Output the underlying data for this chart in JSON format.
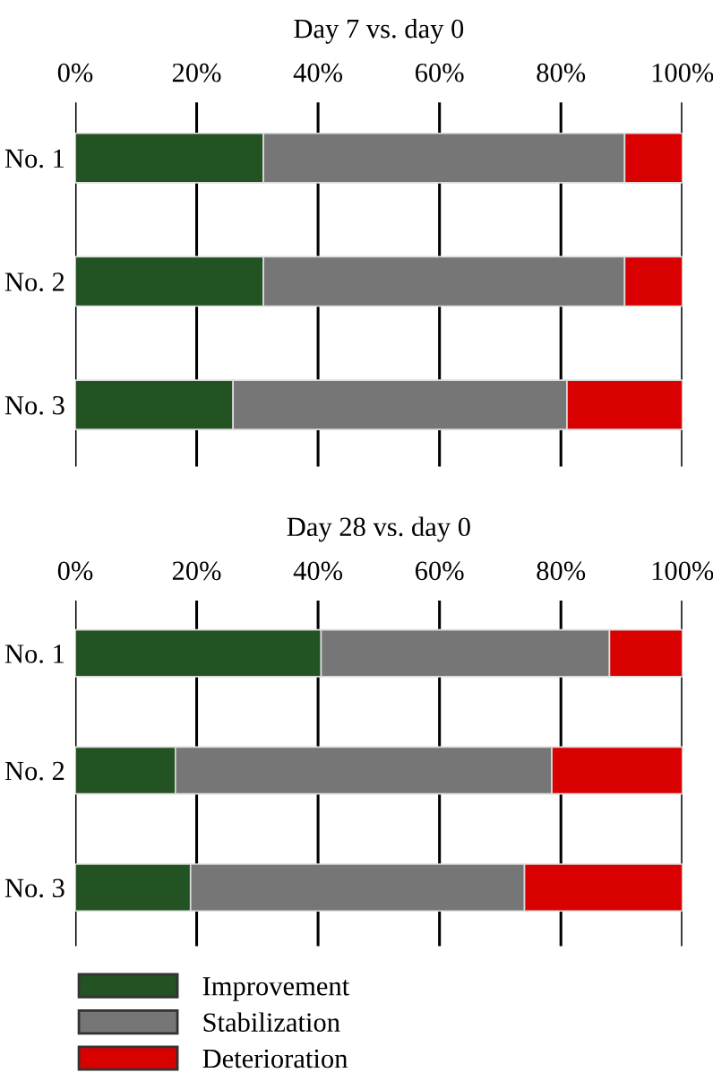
{
  "chart_data": [
    {
      "type": "bar",
      "title": "Day 7 vs. day 0",
      "orientation": "horizontal",
      "stacked": true,
      "categories": [
        "No. 1",
        "No. 2",
        "No. 3"
      ],
      "series": [
        {
          "color": "#235223",
          "values": [
            31,
            31,
            26
          ]
        },
        {
          "color": "#767676",
          "values": [
            59.5,
            59.5,
            55
          ]
        },
        {
          "color": "#d90000",
          "values": [
            9.5,
            9.5,
            19
          ]
        }
      ],
      "xlim": [
        0,
        100
      ],
      "xticks": [
        {
          "value": 0,
          "label": "0%"
        },
        {
          "value": 20,
          "label": "20%"
        },
        {
          "value": 40,
          "label": "40%"
        },
        {
          "value": 60,
          "label": "60%"
        },
        {
          "value": 80,
          "label": "80%"
        },
        {
          "value": 100,
          "label": "100%"
        }
      ],
      "grid": "x"
    },
    {
      "type": "bar",
      "title": "Day 28 vs. day 0",
      "orientation": "horizontal",
      "stacked": true,
      "categories": [
        "No. 1",
        "No. 2",
        "No. 3"
      ],
      "series": [
        {
          "name": "Improvement",
          "color": "#235223",
          "values": [
            40.5,
            16.5,
            19
          ]
        },
        {
          "name": "Stabilization",
          "color": "#767676",
          "values": [
            47.5,
            62,
            55
          ]
        },
        {
          "name": "Deterioration",
          "color": "#d90000",
          "values": [
            12,
            21.5,
            26
          ]
        }
      ],
      "xlim": [
        0,
        100
      ],
      "xticks": [
        {
          "value": 0,
          "label": "0%"
        },
        {
          "value": 20,
          "label": "20%"
        },
        {
          "value": 40,
          "label": "40%"
        },
        {
          "value": 60,
          "label": "60%"
        },
        {
          "value": 80,
          "label": "80%"
        },
        {
          "value": 100,
          "label": "100%"
        }
      ],
      "grid": "x",
      "legend": "bottom"
    }
  ]
}
